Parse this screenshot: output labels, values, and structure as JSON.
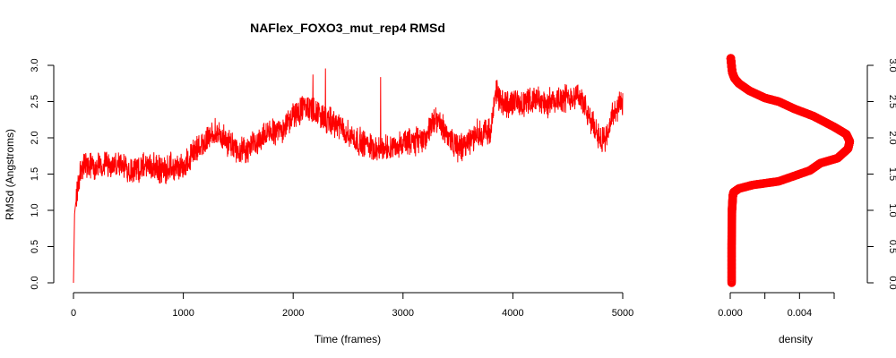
{
  "chart_data": [
    {
      "type": "line",
      "title": "NAFlex_FOXO3_mut_rep4 RMSd",
      "xlabel": "Time (frames)",
      "ylabel": "RMSd (Angstroms)",
      "xlim": [
        0,
        5000
      ],
      "ylim": [
        0,
        3.0
      ],
      "xticks": [
        0,
        1000,
        2000,
        3000,
        4000,
        5000
      ],
      "yticks": [
        "0.0",
        "0.5",
        "1.0",
        "1.5",
        "2.0",
        "2.5",
        "3.0"
      ],
      "grid": false,
      "color": "#ff0000",
      "series": [
        {
          "x": [
            0,
            10,
            20,
            40,
            60,
            100,
            200,
            300,
            400,
            500,
            600,
            700,
            800,
            900,
            1000,
            1100,
            1200,
            1300,
            1400,
            1500,
            1600,
            1700,
            1800,
            1900,
            2000,
            2100,
            2200,
            2300,
            2400,
            2500,
            2600,
            2700,
            2800,
            2900,
            3000,
            3100,
            3200,
            3300,
            3400,
            3500,
            3600,
            3700,
            3800,
            3850,
            3900,
            4000,
            4100,
            4200,
            4300,
            4400,
            4500,
            4600,
            4700,
            4800,
            4850,
            4900,
            4950,
            5000
          ],
          "y": [
            0.0,
            0.95,
            1.1,
            1.3,
            1.55,
            1.62,
            1.58,
            1.65,
            1.6,
            1.57,
            1.58,
            1.62,
            1.55,
            1.6,
            1.58,
            1.82,
            1.95,
            2.08,
            1.95,
            1.8,
            1.85,
            1.98,
            2.08,
            2.12,
            2.3,
            2.42,
            2.38,
            2.25,
            2.18,
            2.05,
            1.95,
            1.9,
            1.85,
            1.88,
            1.92,
            1.95,
            2.0,
            2.25,
            2.05,
            1.85,
            1.95,
            2.08,
            2.1,
            2.65,
            2.45,
            2.5,
            2.45,
            2.55,
            2.45,
            2.55,
            2.55,
            2.6,
            2.25,
            2.0,
            1.95,
            2.3,
            2.4,
            2.45
          ]
        }
      ]
    },
    {
      "type": "scatter",
      "xlabel": "density",
      "ylabel": "",
      "xlim": [
        0,
        0.007
      ],
      "ylim": [
        0,
        3.0
      ],
      "xticks": [
        "0.000",
        "0.004"
      ],
      "yticks": [
        "0.0",
        "0.5",
        "1.0",
        "1.5",
        "2.0",
        "2.5",
        "3.0"
      ],
      "grid": false,
      "color": "#ff0000",
      "series": [
        {
          "x": [
            8e-05,
            8e-05,
            0.0001,
            0.00015,
            0.0002,
            0.0005,
            0.0013,
            0.0028,
            0.0046,
            0.0052,
            0.0062,
            0.0068,
            0.0069,
            0.0067,
            0.006,
            0.0048,
            0.0037,
            0.0028,
            0.002,
            0.0011,
            0.0005,
            0.00025,
            0.00012,
            8e-05,
            5e-05,
            3e-05
          ],
          "y": [
            0.0,
            0.5,
            1.0,
            1.2,
            1.25,
            1.3,
            1.35,
            1.4,
            1.55,
            1.65,
            1.72,
            1.85,
            1.95,
            2.05,
            2.15,
            2.3,
            2.4,
            2.5,
            2.55,
            2.65,
            2.75,
            2.82,
            2.9,
            2.98,
            3.05,
            3.1
          ]
        }
      ]
    }
  ]
}
